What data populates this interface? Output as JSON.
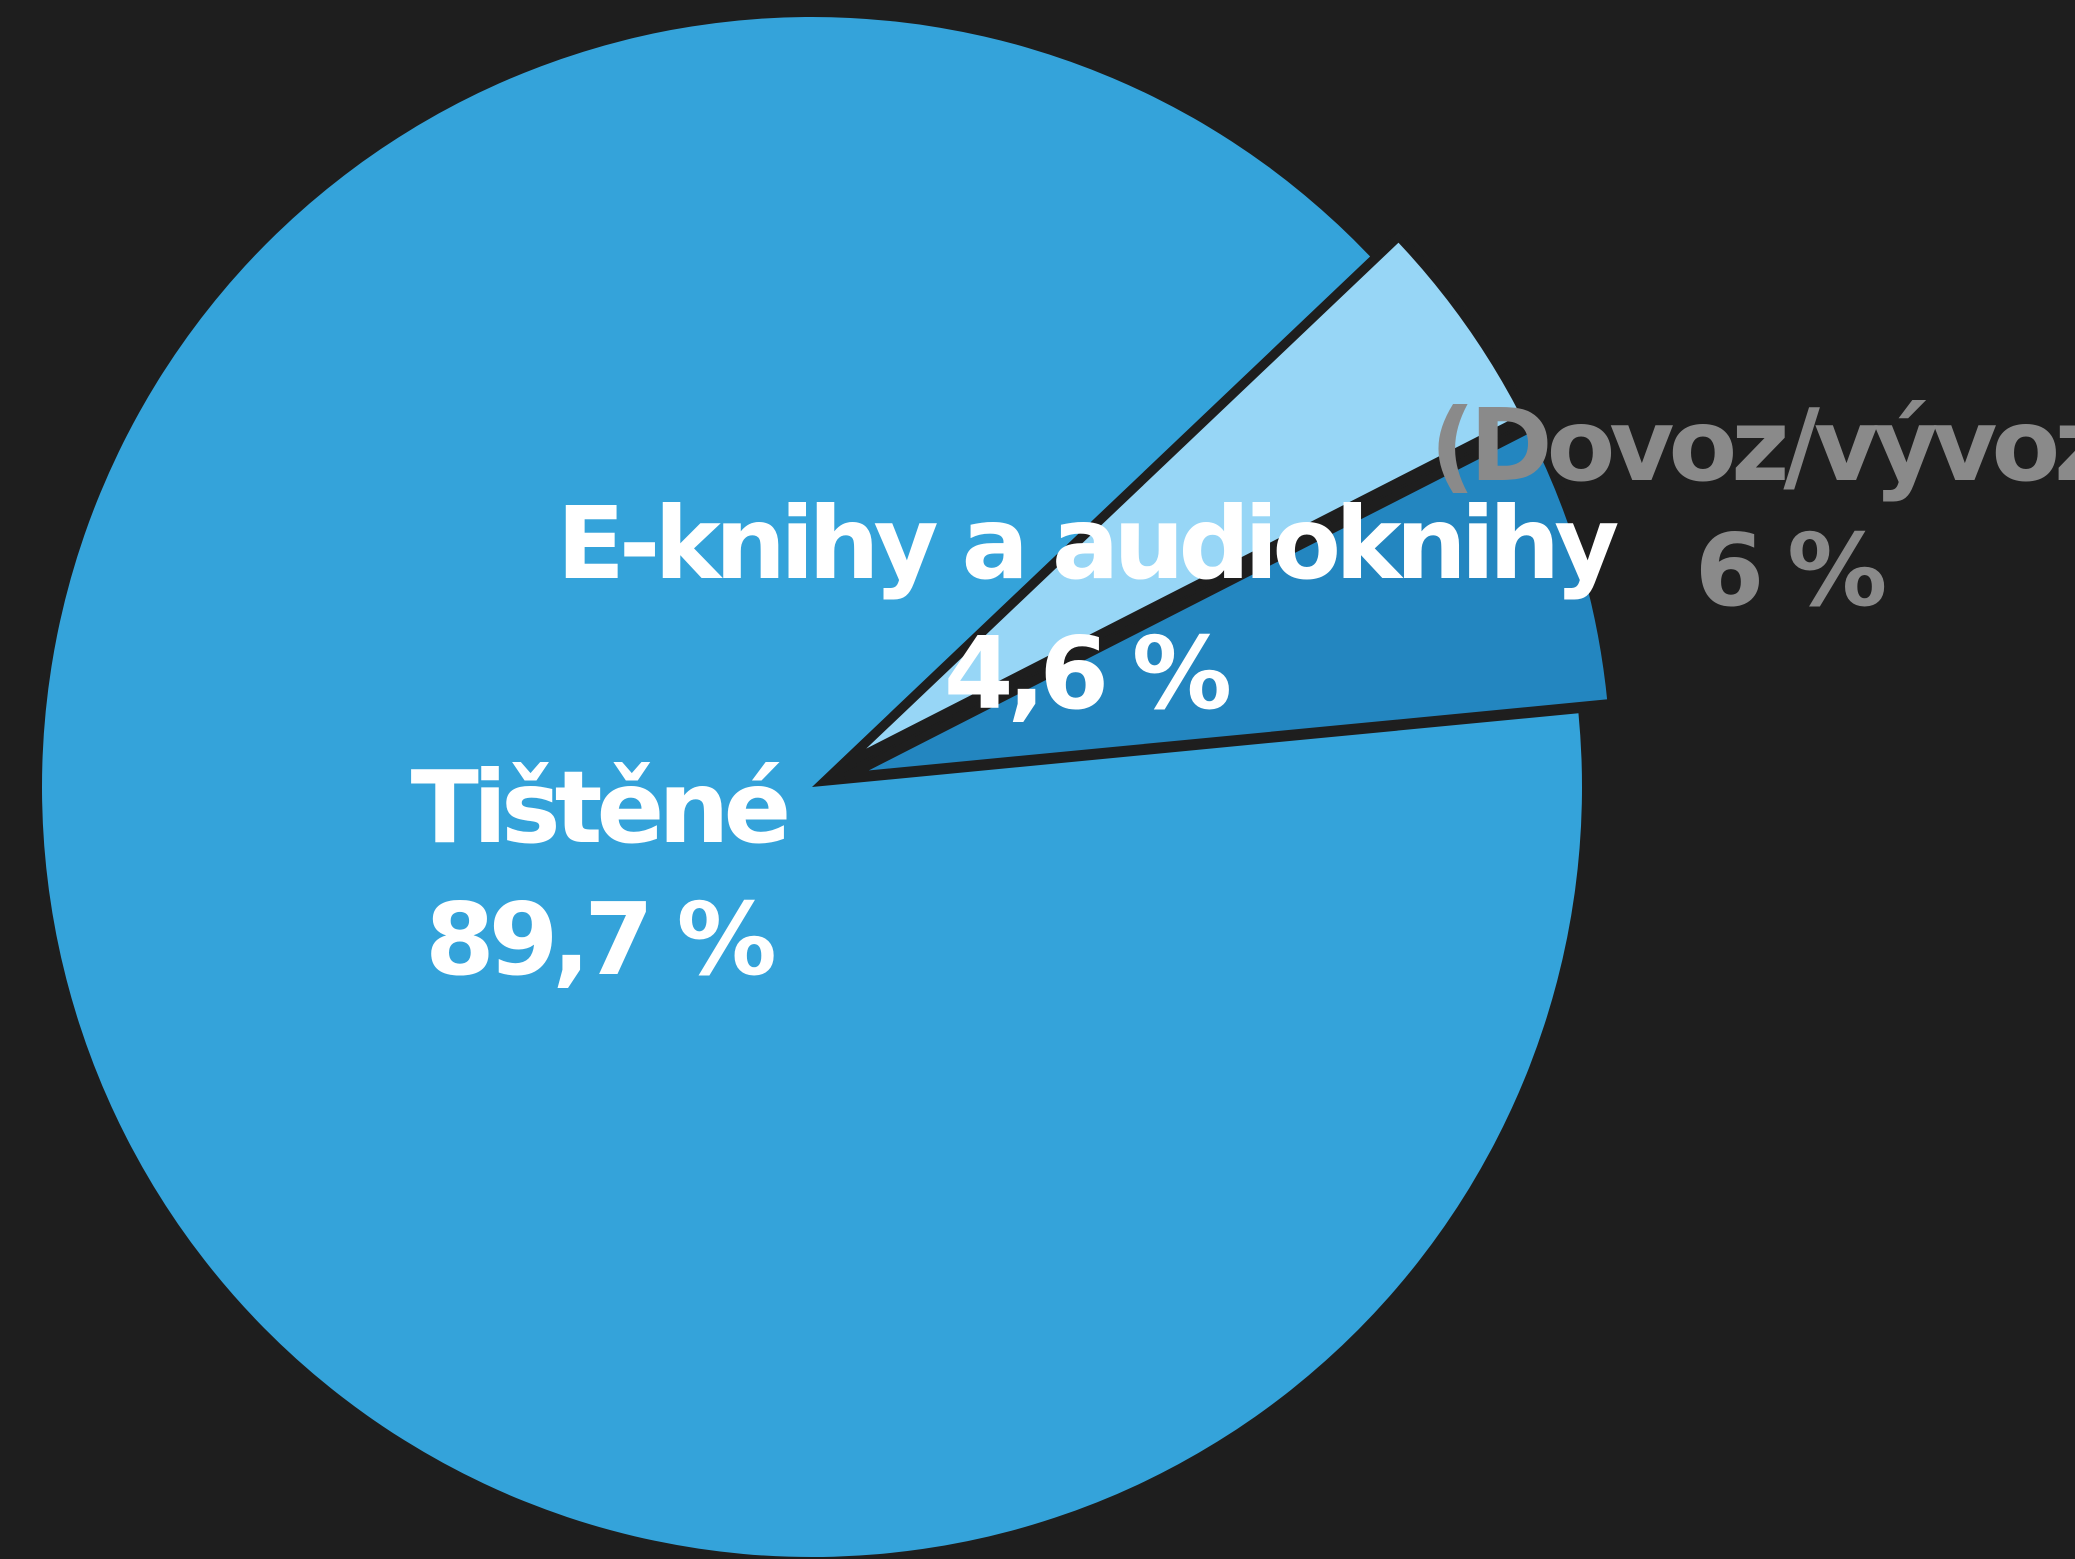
{
  "background_color": "#1e1e1e",
  "chart_data": {
    "type": "pie",
    "title": "",
    "slices": [
      {
        "label": "Tištěné",
        "value": 89.7,
        "value_label": "89,7 %",
        "color": "#34a3da",
        "label_color": "#ffffff",
        "exploded": false
      },
      {
        "label": "E-knihy a audioknihy",
        "value": 4.6,
        "value_label": "4,6 %",
        "color": "#97d6f6",
        "label_color": "#ffffff",
        "exploded": true
      },
      {
        "label": "(Dovoz/vývoz)",
        "value": 6,
        "value_label": "6 %",
        "color": "#2386c0",
        "label_color": "#8a8a8a",
        "exploded": true
      }
    ]
  }
}
